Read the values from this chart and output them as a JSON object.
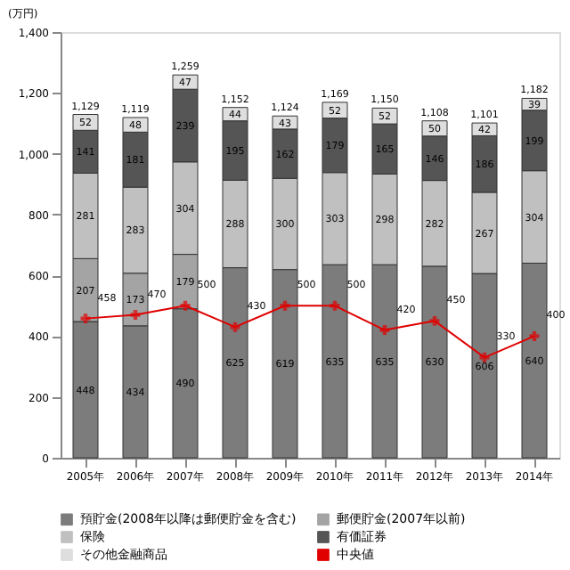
{
  "chart_data": {
    "type": "bar",
    "stacked": true,
    "ylabel": "(万円)",
    "categories": [
      "2005年",
      "2006年",
      "2007年",
      "2008年",
      "2009年",
      "2010年",
      "2011年",
      "2012年",
      "2013年",
      "2014年"
    ],
    "series": [
      {
        "name": "預貯金(2008年以降は郵便貯金を含む)",
        "color": "#7c7c7c",
        "values": [
          448,
          434,
          490,
          625,
          619,
          635,
          635,
          630,
          606,
          640
        ]
      },
      {
        "name": "郵便貯金(2007年以前)",
        "color": "#a4a4a4",
        "values": [
          207,
          173,
          179,
          null,
          null,
          null,
          null,
          null,
          null,
          null
        ]
      },
      {
        "name": "保険",
        "color": "#c0c0c0",
        "values": [
          281,
          283,
          304,
          288,
          300,
          303,
          298,
          282,
          267,
          304
        ]
      },
      {
        "name": "有価証券",
        "color": "#555555",
        "values": [
          141,
          181,
          239,
          195,
          162,
          179,
          165,
          146,
          186,
          199
        ]
      },
      {
        "name": "その他金融商品",
        "color": "#dedede",
        "values": [
          52,
          48,
          47,
          44,
          43,
          52,
          52,
          50,
          42,
          39
        ]
      },
      {
        "name": "中央値",
        "type": "line",
        "color": "#e00000",
        "marker": "cross",
        "values": [
          458,
          470,
          500,
          430,
          500,
          500,
          420,
          450,
          330,
          400
        ]
      }
    ],
    "totals": [
      "1,129",
      "1,119",
      "1,259",
      "1,152",
      "1,124",
      "1,169",
      "1,150",
      "1,108",
      "1,101",
      "1,182"
    ],
    "data_labels": true,
    "ylim": [
      0,
      1400
    ],
    "yticks": [
      0,
      200,
      400,
      600,
      800,
      {
        "value": 1000,
        "label": "1,000"
      },
      {
        "value": 1200,
        "label": "1,200"
      },
      {
        "value": 1400,
        "label": "1,400"
      }
    ],
    "grid": false,
    "legend": "bottom"
  }
}
